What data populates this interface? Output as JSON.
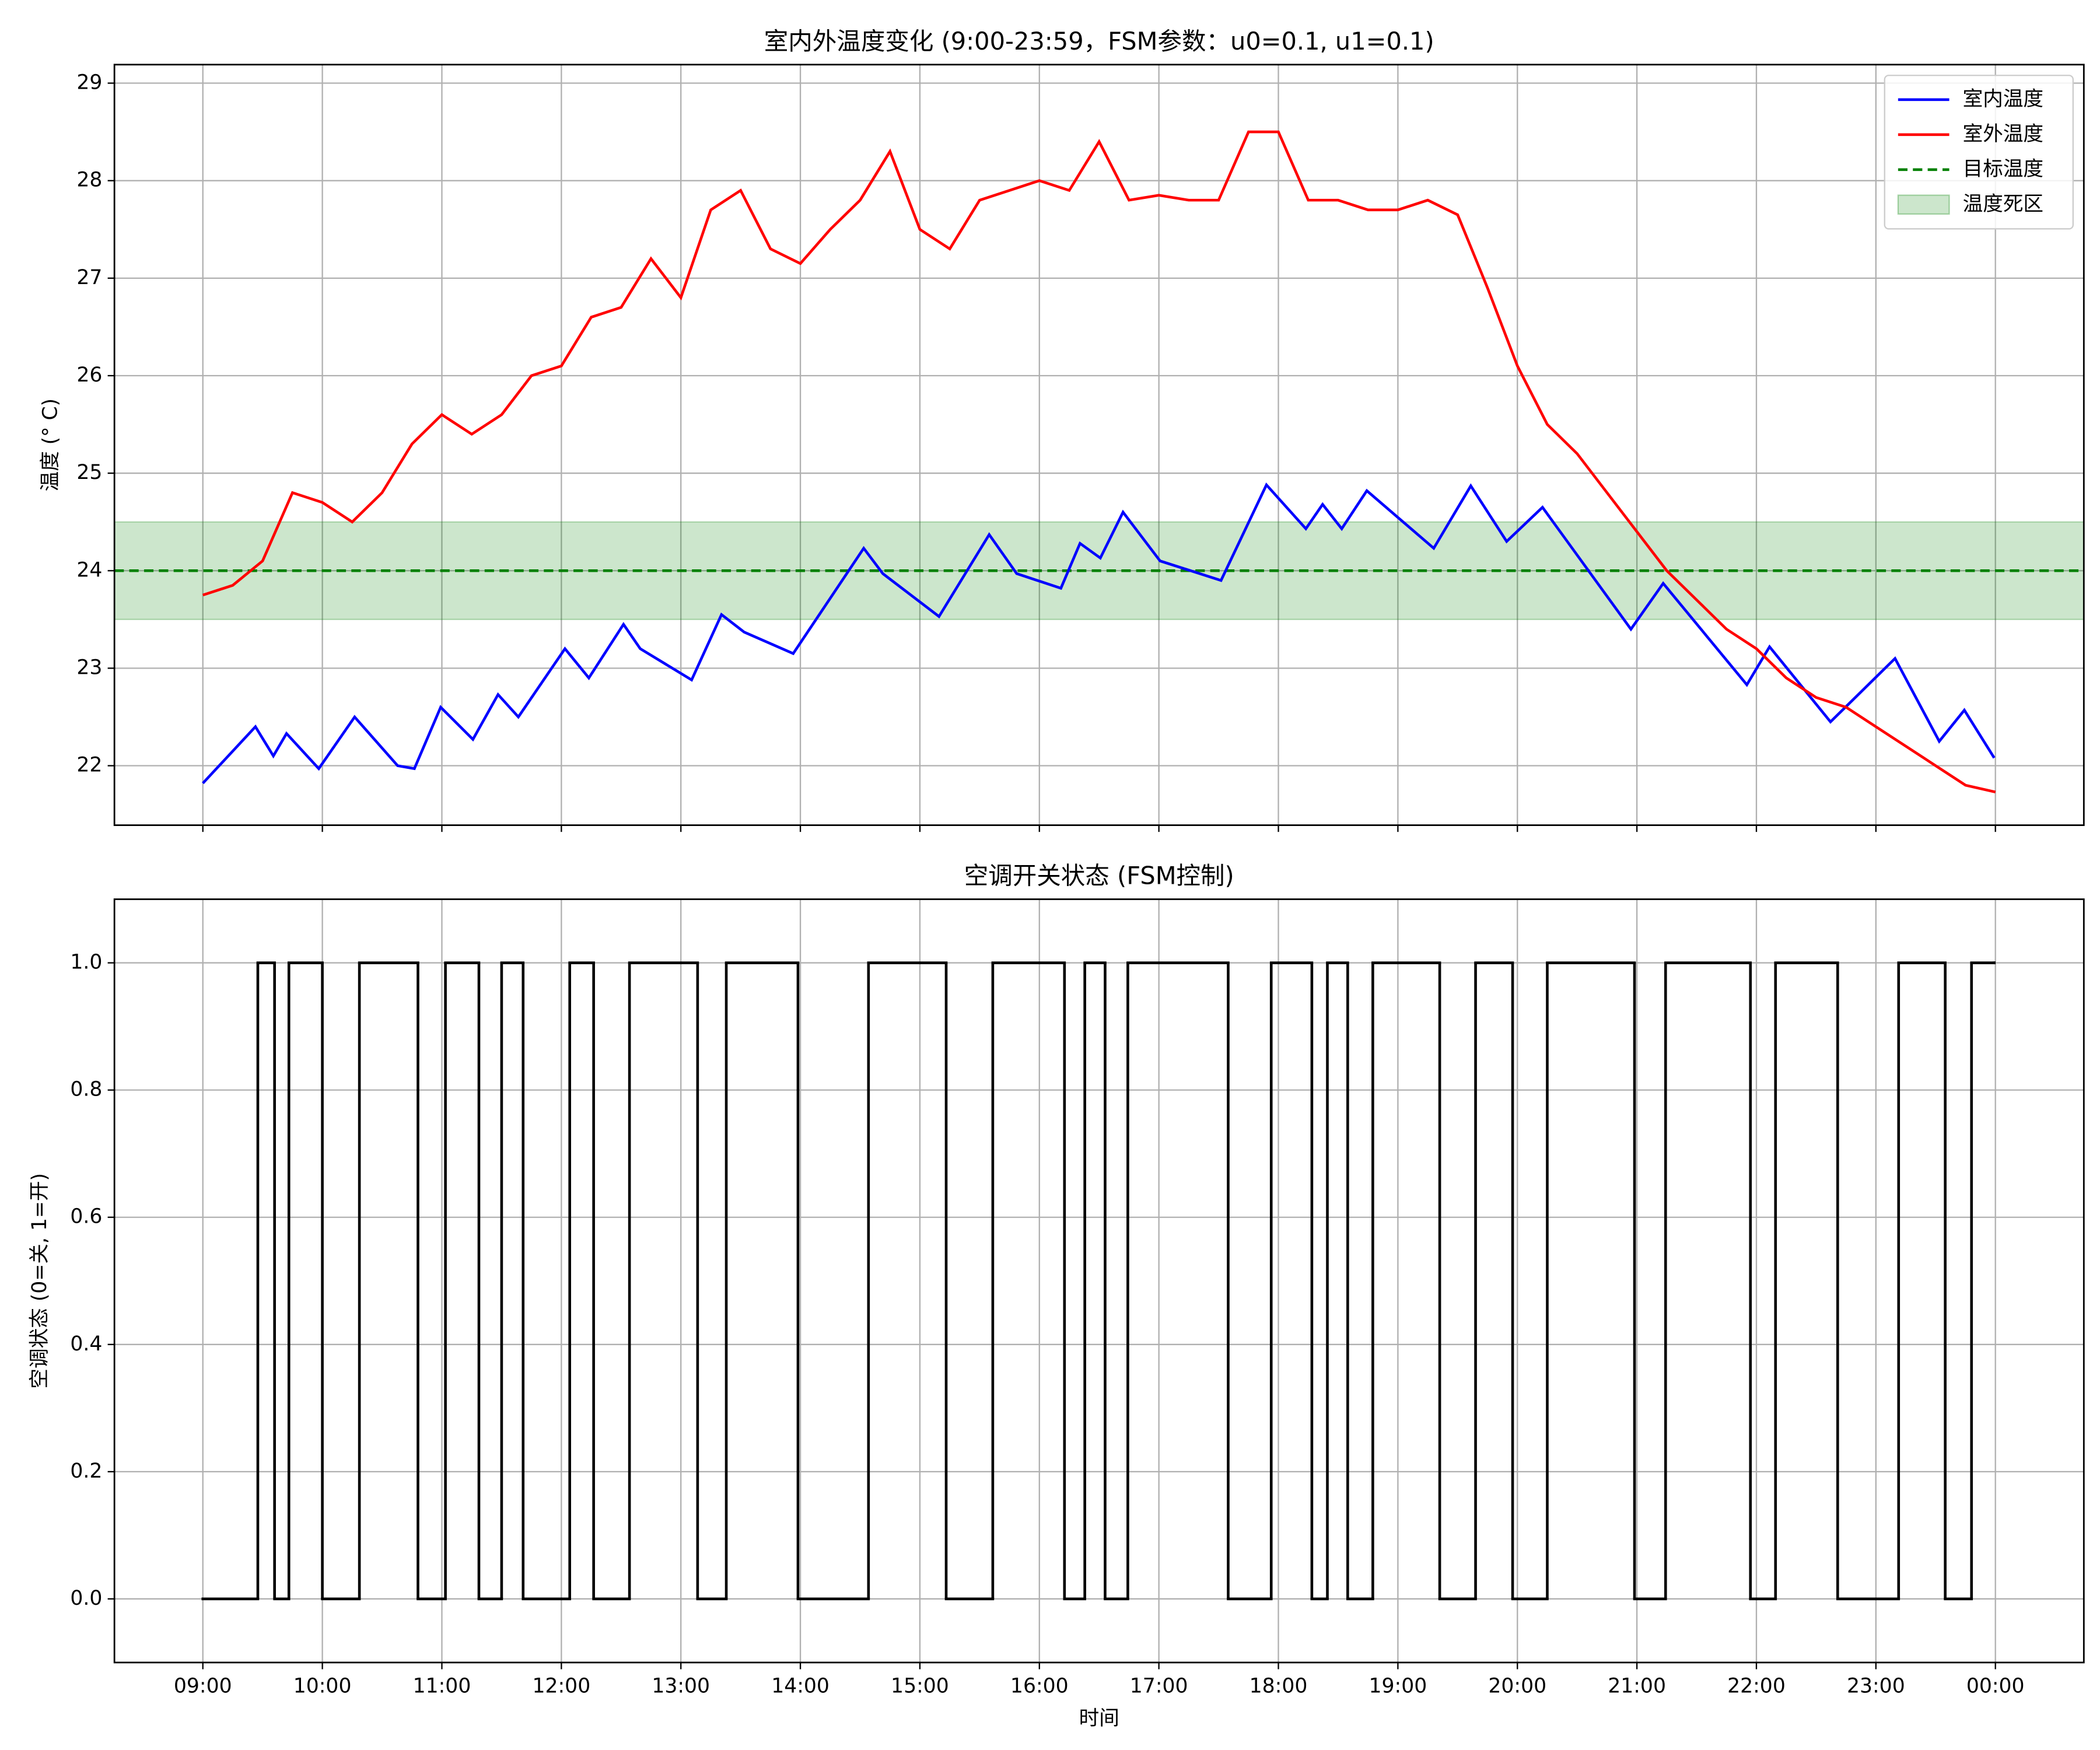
{
  "chart_data": [
    {
      "type": "line",
      "title": "室内外温度变化 (9:00-23:59，FSM参数：u0=0.1, u1=0.1)",
      "ylabel": "温度 (° C)",
      "xlim": [
        8.26,
        24.74
      ],
      "ylim": [
        21.39,
        29.19
      ],
      "xticks": [
        {
          "value": 9,
          "label": "09:00"
        },
        {
          "value": 10,
          "label": "10:00"
        },
        {
          "value": 11,
          "label": "11:00"
        },
        {
          "value": 12,
          "label": "12:00"
        },
        {
          "value": 13,
          "label": "13:00"
        },
        {
          "value": 14,
          "label": "14:00"
        },
        {
          "value": 15,
          "label": "15:00"
        },
        {
          "value": 16,
          "label": "16:00"
        },
        {
          "value": 17,
          "label": "17:00"
        },
        {
          "value": 18,
          "label": "18:00"
        },
        {
          "value": 19,
          "label": "19:00"
        },
        {
          "value": 20,
          "label": "20:00"
        },
        {
          "value": 21,
          "label": "21:00"
        },
        {
          "value": 22,
          "label": "22:00"
        },
        {
          "value": 23,
          "label": "23:00"
        },
        {
          "value": 24,
          "label": "00:00"
        }
      ],
      "yticks": [
        22,
        23,
        24,
        25,
        26,
        27,
        28,
        29
      ],
      "grid": true,
      "legend": "upper right",
      "series": [
        {
          "name": "室内温度",
          "color": "#0000ff",
          "x": [
            9.0,
            9.44,
            9.59,
            9.7,
            9.97,
            10.27,
            10.63,
            10.77,
            10.99,
            11.26,
            11.47,
            11.64,
            12.03,
            12.23,
            12.52,
            12.66,
            13.09,
            13.34,
            13.53,
            13.94,
            14.53,
            14.69,
            15.16,
            15.58,
            15.81,
            16.18,
            16.34,
            16.51,
            16.7,
            17.01,
            17.52,
            17.9,
            18.23,
            18.37,
            18.53,
            18.74,
            19.3,
            19.61,
            19.91,
            20.21,
            20.95,
            21.22,
            21.92,
            22.11,
            22.62,
            23.16,
            23.53,
            23.74,
            23.99
          ],
          "values": [
            21.82,
            22.4,
            22.1,
            22.33,
            21.97,
            22.5,
            22.0,
            21.97,
            22.6,
            22.27,
            22.73,
            22.5,
            23.2,
            22.9,
            23.45,
            23.2,
            22.88,
            23.55,
            23.37,
            23.15,
            24.23,
            23.97,
            23.53,
            24.37,
            23.97,
            23.82,
            24.28,
            24.13,
            24.6,
            24.1,
            23.9,
            24.88,
            24.43,
            24.68,
            24.43,
            24.82,
            24.23,
            24.87,
            24.3,
            24.65,
            23.4,
            23.87,
            22.83,
            23.22,
            22.45,
            23.1,
            22.25,
            22.57,
            22.08
          ]
        },
        {
          "name": "室外温度",
          "color": "#ff0000",
          "x": [
            9.0,
            9.25,
            9.5,
            9.75,
            10.0,
            10.25,
            10.5,
            10.75,
            11.0,
            11.25,
            11.5,
            11.75,
            12.0,
            12.25,
            12.5,
            12.75,
            13.0,
            13.25,
            13.5,
            13.75,
            14.0,
            14.25,
            14.5,
            14.75,
            15.0,
            15.25,
            15.5,
            15.75,
            16.0,
            16.25,
            16.5,
            16.75,
            17.0,
            17.25,
            17.5,
            17.75,
            18.0,
            18.25,
            18.5,
            18.75,
            19.0,
            19.25,
            19.5,
            19.75,
            20.0,
            20.25,
            20.5,
            20.75,
            21.0,
            21.25,
            21.5,
            21.75,
            22.0,
            22.25,
            22.5,
            22.75,
            23.0,
            23.25,
            23.5,
            23.75,
            24.0
          ],
          "values": [
            23.75,
            23.85,
            24.1,
            24.8,
            24.7,
            24.5,
            24.8,
            25.3,
            25.6,
            25.4,
            25.6,
            26.0,
            26.1,
            26.6,
            26.7,
            27.2,
            26.8,
            27.7,
            27.9,
            27.3,
            27.15,
            27.5,
            27.8,
            28.3,
            27.5,
            27.3,
            27.8,
            27.9,
            28.0,
            27.9,
            28.4,
            27.8,
            27.85,
            27.8,
            27.8,
            28.5,
            28.5,
            27.8,
            27.8,
            27.7,
            27.7,
            27.8,
            27.65,
            26.9,
            26.1,
            25.5,
            25.2,
            24.8,
            24.4,
            24.0,
            23.7,
            23.4,
            23.2,
            22.9,
            22.7,
            22.6,
            22.4,
            22.2,
            22.0,
            21.8,
            21.73
          ]
        }
      ],
      "hlines": [
        {
          "name": "目标温度",
          "value": 24,
          "color": "#008000"
        }
      ],
      "bands": [
        {
          "name": "温度死区",
          "range": [
            23.5,
            24.5
          ],
          "color": "#008000"
        }
      ]
    },
    {
      "type": "step",
      "title": "空调开关状态 (FSM控制)",
      "ylabel": "空调状态 (0=关, 1=开)",
      "xlabel": "时间",
      "xlim": [
        8.26,
        24.74
      ],
      "ylim": [
        -0.1,
        1.1
      ],
      "xticks": [
        {
          "value": 9,
          "label": "09:00"
        },
        {
          "value": 10,
          "label": "10:00"
        },
        {
          "value": 11,
          "label": "11:00"
        },
        {
          "value": 12,
          "label": "12:00"
        },
        {
          "value": 13,
          "label": "13:00"
        },
        {
          "value": 14,
          "label": "14:00"
        },
        {
          "value": 15,
          "label": "15:00"
        },
        {
          "value": 16,
          "label": "16:00"
        },
        {
          "value": 17,
          "label": "17:00"
        },
        {
          "value": 18,
          "label": "18:00"
        },
        {
          "value": 19,
          "label": "19:00"
        },
        {
          "value": 20,
          "label": "20:00"
        },
        {
          "value": 21,
          "label": "21:00"
        },
        {
          "value": 22,
          "label": "22:00"
        },
        {
          "value": 23,
          "label": "23:00"
        },
        {
          "value": 24,
          "label": "00:00"
        }
      ],
      "yticks": [
        {
          "value": 0,
          "label": "0.0"
        },
        {
          "value": 0.2,
          "label": "0.2"
        },
        {
          "value": 0.4,
          "label": "0.4"
        },
        {
          "value": 0.6,
          "label": "0.6"
        },
        {
          "value": 0.8,
          "label": "0.8"
        },
        {
          "value": 1,
          "label": "1.0"
        }
      ],
      "grid": true,
      "color": "#000000",
      "x": [
        9.0,
        9.46,
        9.6,
        9.72,
        10.0,
        10.31,
        10.8,
        11.03,
        11.31,
        11.5,
        11.68,
        12.07,
        12.27,
        12.57,
        13.14,
        13.38,
        13.98,
        14.57,
        15.22,
        15.61,
        16.21,
        16.38,
        16.55,
        16.74,
        17.58,
        17.94,
        18.28,
        18.41,
        18.58,
        18.79,
        19.35,
        19.65,
        19.96,
        20.25,
        20.98,
        21.24,
        21.95,
        22.16,
        22.68,
        23.19,
        23.58,
        23.8,
        23.99
      ],
      "values": [
        0,
        1,
        0,
        1,
        0,
        1,
        0,
        1,
        0,
        1,
        0,
        1,
        0,
        1,
        0,
        1,
        0,
        1,
        0,
        1,
        0,
        1,
        0,
        1,
        0,
        1,
        0,
        1,
        0,
        1,
        0,
        1,
        0,
        1,
        0,
        1,
        0,
        1,
        0,
        1,
        0,
        1,
        1
      ]
    }
  ]
}
